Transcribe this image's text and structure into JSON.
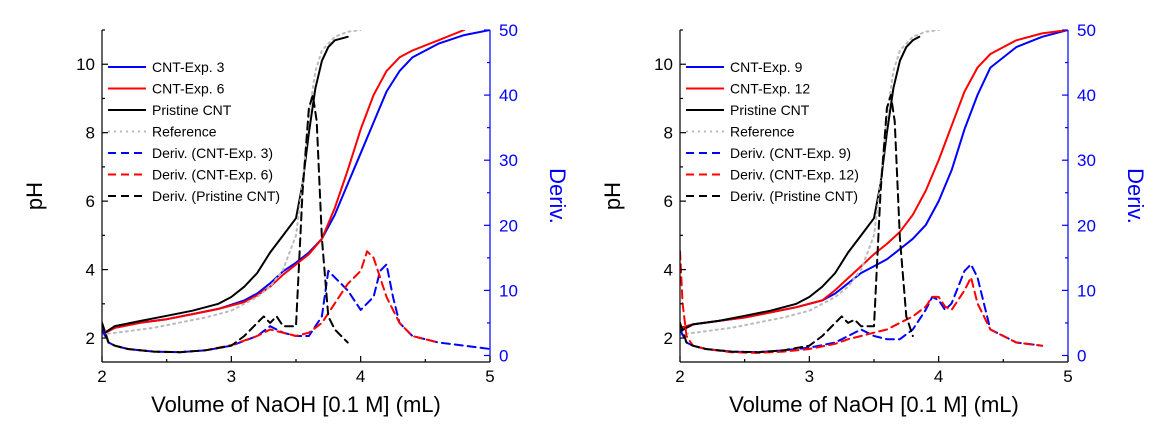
{
  "chart_data": [
    {
      "type": "line",
      "xlabel": "Volume of NaOH [0.1 M] (mL)",
      "ylabel": "pH",
      "y2label": "Deriv.",
      "xlim": [
        2,
        5
      ],
      "ylim": [
        1.3,
        11
      ],
      "y2lim": [
        -1,
        50
      ],
      "xticks": [
        "2",
        "3",
        "4",
        "5"
      ],
      "yticks": [
        "2",
        "4",
        "6",
        "8",
        "10"
      ],
      "y2ticks": [
        "0",
        "10",
        "20",
        "30",
        "40",
        "50"
      ],
      "legend_position": "left",
      "series": [
        {
          "name": "CNT-Exp. 3",
          "axis": "left",
          "color": "#0000ff",
          "dash": "solid",
          "x": [
            2.0,
            2.1,
            2.3,
            2.5,
            2.7,
            2.9,
            3.1,
            3.2,
            3.3,
            3.4,
            3.5,
            3.6,
            3.7,
            3.8,
            3.9,
            4.0,
            4.1,
            4.2,
            4.3,
            4.4,
            4.6,
            4.8,
            5.0
          ],
          "y": [
            2.1,
            2.3,
            2.45,
            2.55,
            2.7,
            2.85,
            3.1,
            3.3,
            3.6,
            3.95,
            4.2,
            4.5,
            4.9,
            5.6,
            6.5,
            7.4,
            8.3,
            9.2,
            9.8,
            10.2,
            10.6,
            10.85,
            11.0
          ]
        },
        {
          "name": "CNT-Exp. 6",
          "axis": "left",
          "color": "#ff0000",
          "dash": "solid",
          "x": [
            2.0,
            2.1,
            2.3,
            2.5,
            2.7,
            2.9,
            3.1,
            3.2,
            3.3,
            3.4,
            3.5,
            3.6,
            3.7,
            3.8,
            3.9,
            4.0,
            4.1,
            4.2,
            4.3,
            4.4,
            4.6,
            4.8
          ],
          "y": [
            2.1,
            2.3,
            2.45,
            2.55,
            2.7,
            2.85,
            3.05,
            3.25,
            3.5,
            3.85,
            4.15,
            4.45,
            4.9,
            5.8,
            6.9,
            8.1,
            9.1,
            9.8,
            10.2,
            10.4,
            10.7,
            11.0
          ]
        },
        {
          "name": "Pristine CNT",
          "axis": "left",
          "color": "#000000",
          "dash": "solid",
          "x": [
            2.0,
            2.1,
            2.3,
            2.5,
            2.7,
            2.9,
            3.0,
            3.1,
            3.2,
            3.3,
            3.4,
            3.5,
            3.55,
            3.6,
            3.65,
            3.7,
            3.75,
            3.8,
            3.9
          ],
          "y": [
            2.1,
            2.35,
            2.5,
            2.65,
            2.8,
            3.0,
            3.2,
            3.5,
            3.9,
            4.5,
            5.0,
            5.5,
            6.5,
            8.0,
            9.3,
            10.1,
            10.5,
            10.7,
            10.8
          ]
        },
        {
          "name": "Reference",
          "axis": "left",
          "color": "#bbbbbb",
          "dash": "dotted",
          "x": [
            2.0,
            2.2,
            2.4,
            2.6,
            2.8,
            3.0,
            3.2,
            3.3,
            3.4,
            3.5,
            3.55,
            3.6,
            3.65,
            3.7,
            3.8,
            3.9,
            4.0
          ],
          "y": [
            2.1,
            2.2,
            2.3,
            2.45,
            2.6,
            2.8,
            3.2,
            3.5,
            4.0,
            5.0,
            6.5,
            8.5,
            9.8,
            10.4,
            10.8,
            10.95,
            11.0
          ]
        },
        {
          "name": "Deriv. (CNT-Exp. 3)",
          "axis": "right",
          "color": "#0000ff",
          "dash": "dashed",
          "x": [
            2.0,
            2.05,
            2.1,
            2.2,
            2.4,
            2.6,
            2.8,
            3.0,
            3.2,
            3.3,
            3.4,
            3.5,
            3.6,
            3.7,
            3.75,
            3.8,
            3.9,
            4.0,
            4.1,
            4.15,
            4.2,
            4.25,
            4.3,
            4.4,
            4.6,
            4.8,
            5.0
          ],
          "y": [
            4,
            2,
            1.5,
            1.0,
            0.6,
            0.5,
            0.8,
            1.5,
            3,
            4.5,
            3.5,
            3,
            3,
            6,
            13,
            12,
            10,
            7,
            9,
            13,
            14,
            9,
            5,
            3,
            2,
            1.5,
            1
          ]
        },
        {
          "name": "Deriv. (CNT-Exp. 6)",
          "axis": "right",
          "color": "#ff0000",
          "dash": "dashed",
          "x": [
            2.0,
            2.05,
            2.1,
            2.2,
            2.4,
            2.6,
            2.8,
            3.0,
            3.2,
            3.3,
            3.4,
            3.5,
            3.6,
            3.7,
            3.8,
            3.9,
            4.0,
            4.05,
            4.1,
            4.2,
            4.3,
            4.4,
            4.6
          ],
          "y": [
            5,
            2,
            1.5,
            1.0,
            0.6,
            0.5,
            0.8,
            1.6,
            3,
            4,
            3.5,
            3,
            3.5,
            5,
            8,
            11,
            13,
            16,
            15,
            9,
            5,
            3,
            2
          ]
        },
        {
          "name": "Deriv. (Pristine CNT)",
          "axis": "right",
          "color": "#000000",
          "dash": "dashed",
          "x": [
            2.0,
            2.05,
            2.1,
            2.2,
            2.4,
            2.6,
            2.8,
            3.0,
            3.1,
            3.2,
            3.25,
            3.3,
            3.35,
            3.4,
            3.5,
            3.55,
            3.6,
            3.63,
            3.66,
            3.7,
            3.75,
            3.8,
            3.9
          ],
          "y": [
            5,
            2,
            1.5,
            1.0,
            0.6,
            0.5,
            0.8,
            1.5,
            3,
            5,
            6,
            5,
            6,
            4.5,
            4.5,
            25,
            38,
            40,
            36,
            18,
            6,
            4,
            2
          ]
        }
      ]
    },
    {
      "type": "line",
      "xlabel": "Volume of NaOH [0.1 M] (mL)",
      "ylabel": "pH",
      "y2label": "Deriv.",
      "xlim": [
        2,
        5
      ],
      "ylim": [
        1.3,
        11
      ],
      "y2lim": [
        -1,
        50
      ],
      "xticks": [
        "2",
        "3",
        "4",
        "5"
      ],
      "yticks": [
        "2",
        "4",
        "6",
        "8",
        "10"
      ],
      "y2ticks": [
        "0",
        "10",
        "20",
        "30",
        "40",
        "50"
      ],
      "legend_position": "left",
      "series": [
        {
          "name": "CNT-Exp. 9",
          "axis": "left",
          "color": "#0000ff",
          "dash": "solid",
          "x": [
            2.0,
            2.1,
            2.3,
            2.5,
            2.7,
            2.9,
            3.1,
            3.2,
            3.3,
            3.4,
            3.5,
            3.6,
            3.7,
            3.8,
            3.9,
            4.0,
            4.1,
            4.2,
            4.3,
            4.4,
            4.6,
            4.8,
            5.0
          ],
          "y": [
            2.2,
            2.4,
            2.5,
            2.6,
            2.75,
            2.9,
            3.1,
            3.3,
            3.6,
            3.9,
            4.1,
            4.3,
            4.6,
            4.9,
            5.3,
            6.0,
            6.9,
            8.1,
            9.1,
            9.9,
            10.5,
            10.8,
            11.0
          ]
        },
        {
          "name": "CNT-Exp. 12",
          "axis": "left",
          "color": "#ff0000",
          "dash": "solid",
          "x": [
            2.0,
            2.1,
            2.3,
            2.5,
            2.7,
            2.9,
            3.1,
            3.2,
            3.3,
            3.4,
            3.5,
            3.6,
            3.7,
            3.8,
            3.9,
            4.0,
            4.1,
            4.2,
            4.3,
            4.4,
            4.6,
            4.8,
            5.0
          ],
          "y": [
            2.3,
            2.4,
            2.5,
            2.6,
            2.75,
            2.9,
            3.1,
            3.4,
            3.75,
            4.1,
            4.45,
            4.75,
            5.1,
            5.6,
            6.3,
            7.2,
            8.2,
            9.2,
            9.9,
            10.3,
            10.7,
            10.9,
            11.0
          ]
        },
        {
          "name": "Pristine CNT",
          "axis": "left",
          "color": "#000000",
          "dash": "solid",
          "x": [
            2.0,
            2.1,
            2.3,
            2.5,
            2.7,
            2.9,
            3.0,
            3.1,
            3.2,
            3.3,
            3.4,
            3.5,
            3.55,
            3.6,
            3.65,
            3.7,
            3.75,
            3.8,
            3.85
          ],
          "y": [
            2.2,
            2.4,
            2.5,
            2.65,
            2.8,
            3.0,
            3.2,
            3.5,
            3.9,
            4.5,
            5.0,
            5.5,
            6.5,
            8.0,
            9.3,
            10.1,
            10.5,
            10.7,
            10.8
          ]
        },
        {
          "name": "Reference",
          "axis": "left",
          "color": "#bbbbbb",
          "dash": "dotted",
          "x": [
            2.0,
            2.2,
            2.4,
            2.6,
            2.8,
            3.0,
            3.2,
            3.3,
            3.4,
            3.5,
            3.55,
            3.6,
            3.65,
            3.7,
            3.8,
            3.9,
            4.0
          ],
          "y": [
            2.1,
            2.2,
            2.3,
            2.45,
            2.6,
            2.8,
            3.2,
            3.5,
            4.0,
            5.0,
            6.5,
            8.5,
            9.8,
            10.4,
            10.8,
            10.95,
            11.0
          ]
        },
        {
          "name": "Deriv. (CNT-Exp. 9)",
          "axis": "right",
          "color": "#0000ff",
          "dash": "dashed",
          "x": [
            2.0,
            2.05,
            2.1,
            2.2,
            2.4,
            2.6,
            2.8,
            3.0,
            3.2,
            3.3,
            3.4,
            3.5,
            3.6,
            3.7,
            3.8,
            3.9,
            3.95,
            4.0,
            4.05,
            4.1,
            4.2,
            4.25,
            4.3,
            4.35,
            4.4,
            4.6,
            4.8
          ],
          "y": [
            4,
            2,
            1.5,
            1.0,
            0.6,
            0.5,
            0.8,
            1.2,
            2,
            3,
            4,
            3,
            2.5,
            2.5,
            4,
            7,
            9,
            8.5,
            7,
            8,
            13,
            14,
            12,
            8,
            4,
            2,
            1.5
          ]
        },
        {
          "name": "Deriv. (CNT-Exp. 12)",
          "axis": "right",
          "color": "#ff0000",
          "dash": "dashed",
          "x": [
            2.0,
            2.02,
            2.05,
            2.1,
            2.2,
            2.4,
            2.6,
            2.8,
            3.0,
            3.2,
            3.3,
            3.4,
            3.5,
            3.6,
            3.7,
            3.8,
            3.9,
            3.95,
            4.0,
            4.05,
            4.1,
            4.2,
            4.25,
            4.3,
            4.4,
            4.6,
            4.8
          ],
          "y": [
            16,
            8,
            3,
            1.5,
            1.0,
            0.5,
            0.4,
            0.6,
            1.0,
            1.8,
            2.5,
            3,
            3.5,
            4,
            5,
            6,
            7.5,
            9,
            9,
            7.5,
            7,
            10,
            12,
            8,
            4,
            2,
            1.5
          ]
        },
        {
          "name": "Deriv. (Pristine CNT)",
          "axis": "right",
          "color": "#000000",
          "dash": "dashed",
          "x": [
            2.0,
            2.05,
            2.1,
            2.2,
            2.4,
            2.6,
            2.8,
            3.0,
            3.1,
            3.2,
            3.25,
            3.3,
            3.35,
            3.4,
            3.5,
            3.55,
            3.6,
            3.63,
            3.66,
            3.7,
            3.75,
            3.8
          ],
          "y": [
            5,
            2,
            1.5,
            1.0,
            0.6,
            0.5,
            0.8,
            1.5,
            3,
            5,
            6,
            5,
            5.5,
            4.5,
            4.5,
            25,
            38,
            40,
            36,
            18,
            6,
            3
          ]
        }
      ]
    }
  ]
}
